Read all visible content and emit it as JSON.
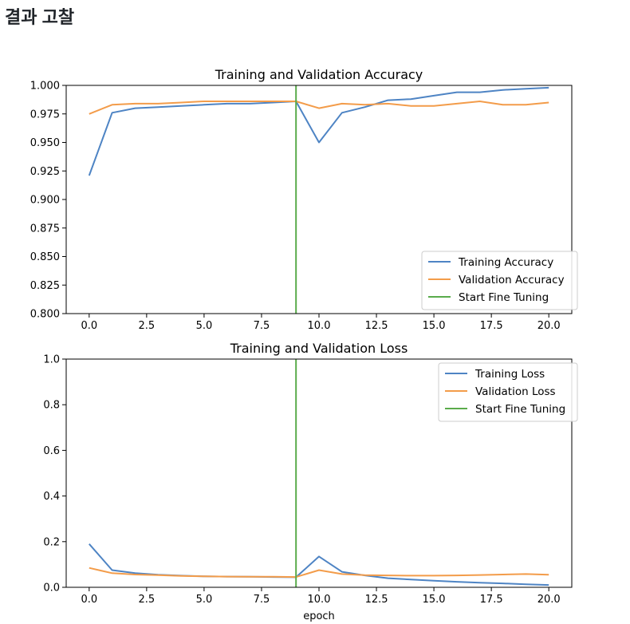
{
  "page": {
    "heading": "결과 고찰"
  },
  "chart_data": [
    {
      "type": "line",
      "title": "Training and Validation Accuracy",
      "xlabel": "",
      "ylabel": "",
      "xlim": [
        -1,
        21
      ],
      "ylim": [
        0.8,
        1.0
      ],
      "xticks": [
        0,
        2.5,
        5,
        7.5,
        10,
        12.5,
        15,
        17.5,
        20
      ],
      "xtick_labels": [
        "0.0",
        "2.5",
        "5.0",
        "7.5",
        "10.0",
        "12.5",
        "15.0",
        "17.5",
        "20.0"
      ],
      "yticks": [
        0.8,
        0.825,
        0.85,
        0.875,
        0.9,
        0.925,
        0.95,
        0.975,
        1.0
      ],
      "ytick_labels": [
        "0.800",
        "0.825",
        "0.850",
        "0.875",
        "0.900",
        "0.925",
        "0.950",
        "0.975",
        "1.000"
      ],
      "grid": false,
      "legend_position": "lower-right",
      "x": [
        0,
        1,
        2,
        3,
        4,
        5,
        6,
        7,
        8,
        9,
        10,
        11,
        12,
        13,
        14,
        15,
        16,
        17,
        18,
        19,
        20
      ],
      "series": [
        {
          "name": "Training Accuracy",
          "color": "#4e84c4",
          "values": [
            0.921,
            0.976,
            0.98,
            0.981,
            0.982,
            0.983,
            0.984,
            0.984,
            0.985,
            0.986,
            0.95,
            0.976,
            0.981,
            0.987,
            0.988,
            0.991,
            0.994,
            0.994,
            0.996,
            0.997,
            0.998
          ]
        },
        {
          "name": "Validation Accuracy",
          "color": "#f39c4a",
          "values": [
            0.975,
            0.983,
            0.984,
            0.984,
            0.985,
            0.986,
            0.986,
            0.986,
            0.986,
            0.986,
            0.98,
            0.984,
            0.983,
            0.984,
            0.982,
            0.982,
            0.984,
            0.986,
            0.983,
            0.983,
            0.985
          ]
        }
      ],
      "vline": {
        "name": "Start Fine Tuning",
        "x": 9,
        "color": "#5aab4b"
      }
    },
    {
      "type": "line",
      "title": "Training and Validation Loss",
      "xlabel": "epoch",
      "ylabel": "",
      "xlim": [
        -1,
        21
      ],
      "ylim": [
        0.0,
        1.0
      ],
      "xticks": [
        0,
        2.5,
        5,
        7.5,
        10,
        12.5,
        15,
        17.5,
        20
      ],
      "xtick_labels": [
        "0.0",
        "2.5",
        "5.0",
        "7.5",
        "10.0",
        "12.5",
        "15.0",
        "17.5",
        "20.0"
      ],
      "yticks": [
        0.0,
        0.2,
        0.4,
        0.6,
        0.8,
        1.0
      ],
      "ytick_labels": [
        "0.0",
        "0.2",
        "0.4",
        "0.6",
        "0.8",
        "1.0"
      ],
      "grid": false,
      "legend_position": "upper-right",
      "x": [
        0,
        1,
        2,
        3,
        4,
        5,
        6,
        7,
        8,
        9,
        10,
        11,
        12,
        13,
        14,
        15,
        16,
        17,
        18,
        19,
        20
      ],
      "series": [
        {
          "name": "Training Loss",
          "color": "#4e84c4",
          "values": [
            0.19,
            0.075,
            0.062,
            0.055,
            0.051,
            0.048,
            0.047,
            0.046,
            0.045,
            0.044,
            0.135,
            0.068,
            0.052,
            0.04,
            0.034,
            0.029,
            0.024,
            0.02,
            0.017,
            0.013,
            0.01
          ]
        },
        {
          "name": "Validation Loss",
          "color": "#f39c4a",
          "values": [
            0.085,
            0.062,
            0.056,
            0.053,
            0.05,
            0.048,
            0.047,
            0.046,
            0.046,
            0.045,
            0.075,
            0.058,
            0.053,
            0.052,
            0.051,
            0.051,
            0.052,
            0.054,
            0.056,
            0.058,
            0.055
          ]
        }
      ],
      "vline": {
        "name": "Start Fine Tuning",
        "x": 9,
        "color": "#5aab4b"
      }
    }
  ]
}
